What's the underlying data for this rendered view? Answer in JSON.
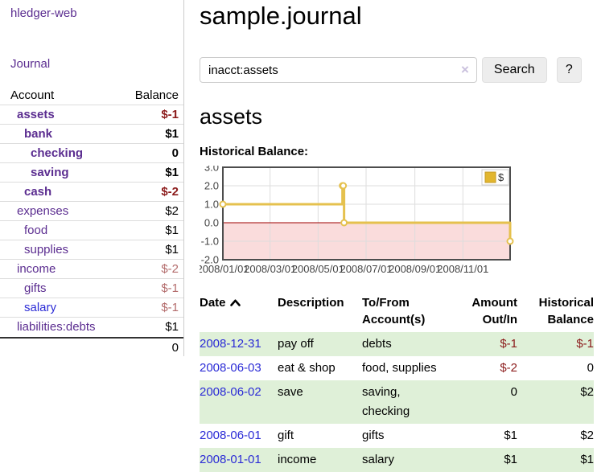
{
  "app": {
    "brand": "hledger-web"
  },
  "sidebar": {
    "nav_journal": "Journal",
    "accounts_header": {
      "account": "Account",
      "balance": "Balance"
    },
    "accounts": [
      {
        "name": "assets",
        "balance": "$-1",
        "depth": 1,
        "bold": true,
        "balance_color": "negative"
      },
      {
        "name": "bank",
        "balance": "$1",
        "depth": 2,
        "bold": true,
        "balance_color": "normal"
      },
      {
        "name": "checking",
        "balance": "0",
        "depth": 3,
        "bold": true,
        "balance_color": "normal"
      },
      {
        "name": "saving",
        "balance": "$1",
        "depth": 3,
        "bold": true,
        "balance_color": "normal"
      },
      {
        "name": "cash",
        "balance": "$-2",
        "depth": 2,
        "bold": true,
        "balance_color": "negative"
      },
      {
        "name": "expenses",
        "balance": "$2",
        "depth": 1,
        "bold": false,
        "balance_color": "normal"
      },
      {
        "name": "food",
        "balance": "$1",
        "depth": 2,
        "bold": false,
        "balance_color": "normal"
      },
      {
        "name": "supplies",
        "balance": "$1",
        "depth": 2,
        "bold": false,
        "balance_color": "normal"
      },
      {
        "name": "income",
        "balance": "$-2",
        "depth": 1,
        "bold": false,
        "balance_color": "negative-muted"
      },
      {
        "name": "gifts",
        "balance": "$-1",
        "depth": 2,
        "bold": false,
        "balance_color": "negative-muted"
      },
      {
        "name": "salary",
        "balance": "$-1",
        "depth": 2,
        "bold": false,
        "balance_color": "negative-muted",
        "link_color": "blue"
      },
      {
        "name": "liabilities:debts",
        "balance": "$1",
        "depth": 1,
        "bold": false,
        "balance_color": "normal"
      }
    ],
    "total": "0"
  },
  "header": {
    "title": "sample.journal"
  },
  "search": {
    "query": "inacct:assets",
    "clear_icon": "×",
    "search_button": "Search",
    "help_button": "?"
  },
  "account_view": {
    "title": "assets",
    "chart_heading": "Historical Balance:"
  },
  "chart_data": {
    "type": "line",
    "title": "Historical Balance:",
    "series": [
      {
        "name": "$",
        "style": "step-after",
        "points": [
          [
            "2008-01-01",
            1
          ],
          [
            "2008-06-01",
            2
          ],
          [
            "2008-06-02",
            2
          ],
          [
            "2008-06-03",
            0
          ],
          [
            "2008-12-31",
            -1
          ]
        ]
      }
    ],
    "x_range": [
      "2008-01-01",
      "2008-12-31"
    ],
    "ylim": [
      -2,
      3
    ],
    "y_ticks": [
      3,
      2,
      1,
      0,
      -1,
      -2
    ],
    "y_tick_labels": [
      "3.0",
      "2.0",
      "1.0",
      "0.0",
      "-1.0",
      "-2.0"
    ],
    "x_ticks": [
      "2008/01/01",
      "2008/03/01",
      "2008/05/01",
      "2008/07/01",
      "2008/09/01",
      "2008/11/01"
    ],
    "legend": {
      "label": "$",
      "position": "top-right"
    },
    "grid": true,
    "negative_region_highlight": true,
    "colors": {
      "line": "#e5c14e",
      "marker_fill": "#ffffff",
      "legend_fill": "#e2b62e",
      "legend_border": "#c49a25",
      "negative_region": "#fadcdc",
      "zero_line": "#9e0000",
      "grid": "#dddddd",
      "plot_border": "#4d4d4d"
    }
  },
  "register": {
    "columns": [
      {
        "l1": "Date",
        "l2": "",
        "sort": "ascending"
      },
      {
        "l1": "Description",
        "l2": ""
      },
      {
        "l1": "To/From",
        "l2": "Account(s)"
      },
      {
        "l1": "Amount",
        "l2": "Out/In"
      },
      {
        "l1": "Historical",
        "l2": "Balance"
      }
    ],
    "rows": [
      {
        "date": "2008-12-31",
        "description": "pay off",
        "accounts": "debts",
        "amount": "$-1",
        "balance": "$-1",
        "highlighted": true
      },
      {
        "date": "2008-06-03",
        "description": "eat & shop",
        "accounts": "food, supplies",
        "amount": "$-2",
        "balance": "0",
        "highlighted": false
      },
      {
        "date": "2008-06-02",
        "description": "save",
        "accounts": "saving, checking",
        "amount": "0",
        "balance": "$2",
        "highlighted": true
      },
      {
        "date": "2008-06-01",
        "description": "gift",
        "accounts": "gifts",
        "amount": "$1",
        "balance": "$2",
        "highlighted": false
      },
      {
        "date": "2008-01-01",
        "description": "income",
        "accounts": "salary",
        "amount": "$1",
        "balance": "$1",
        "highlighted": true
      }
    ]
  },
  "colors": {
    "link_purple": "#5b2d90",
    "link_blue": "#2b2bd6",
    "negative": "#8b1a1a",
    "negative_muted": "#b36b6b",
    "row_highlight_green": "#dff0d8"
  }
}
